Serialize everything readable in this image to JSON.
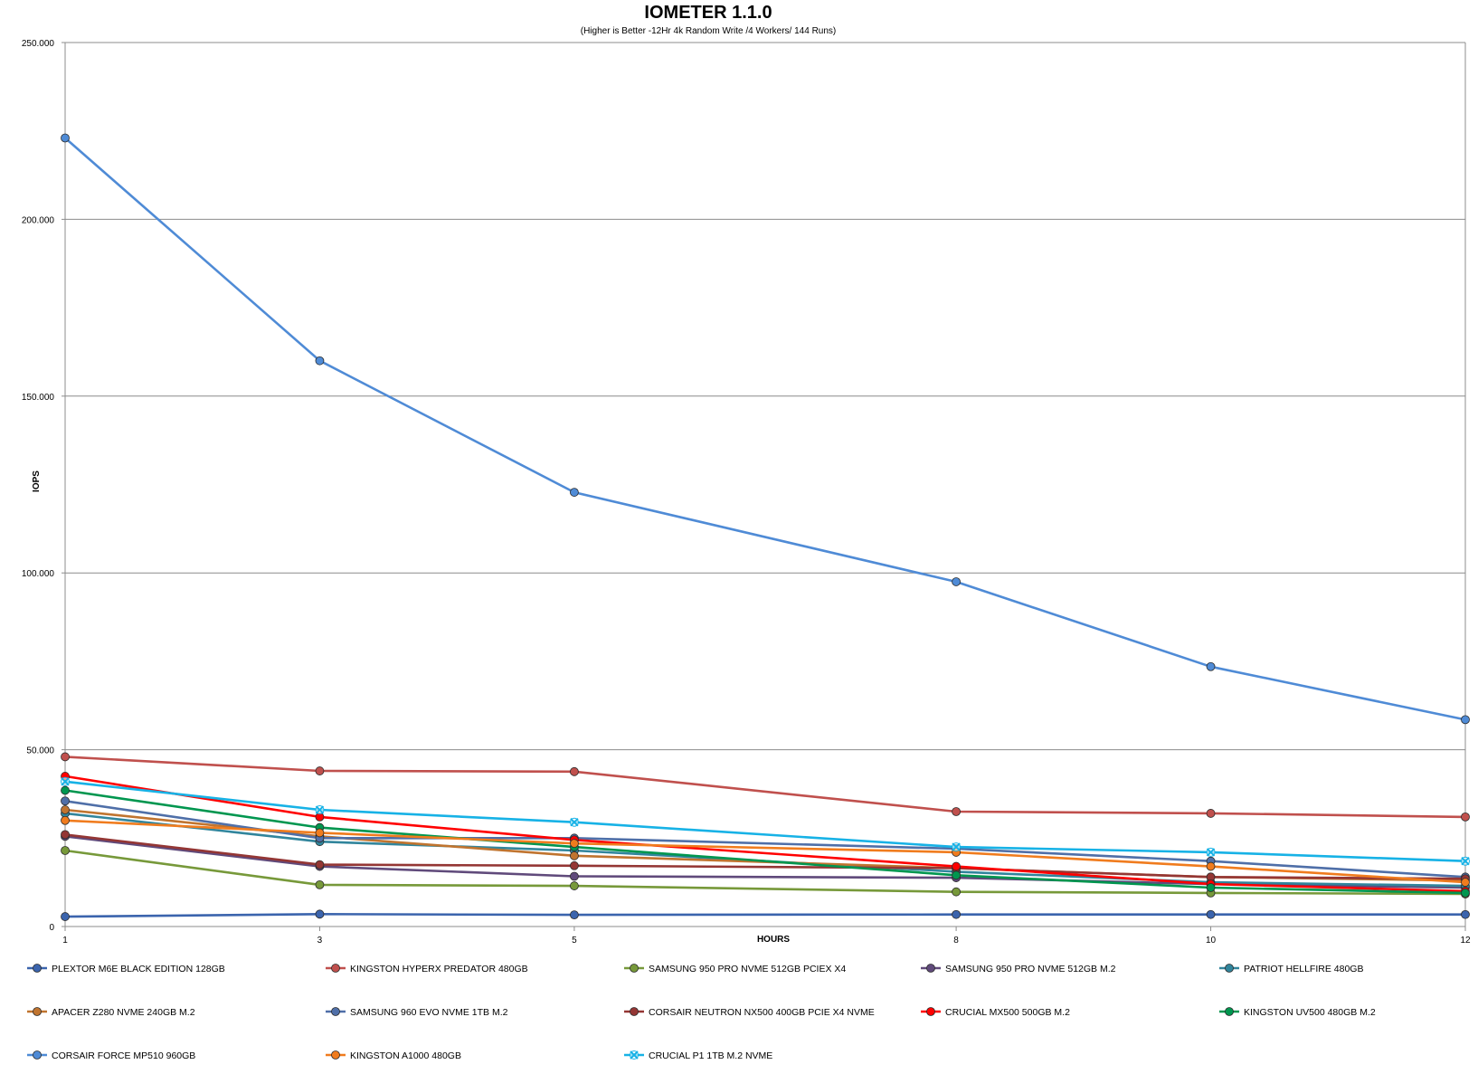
{
  "chart_data": {
    "type": "line",
    "title": "IOMETER 1.1.0",
    "subtitle": "(Higher is Better -12Hr 4k Random Write /4 Workers/ 144 Runs)",
    "xlabel": "HOURS",
    "ylabel": "IOPS",
    "x": [
      1,
      3,
      5,
      8,
      10,
      12
    ],
    "x_tick_labels": [
      "1",
      "3",
      "5",
      "8",
      "10",
      "12"
    ],
    "ylim": [
      0,
      250000
    ],
    "y_ticks": [
      0,
      50000,
      100000,
      150000,
      200000,
      250000
    ],
    "y_tick_labels": [
      "0",
      "50.000",
      "100.000",
      "150.000",
      "200.000",
      "250.000"
    ],
    "grid": "horizontal",
    "legend_position": "bottom",
    "series": [
      {
        "name": "PLEXTOR M6E BLACK EDITION 128GB",
        "color": "#3b64ad",
        "marker": "circle",
        "values": [
          2800,
          3500,
          3300,
          3400,
          3400,
          3400
        ]
      },
      {
        "name": "KINGSTON HYPERX PREDATOR 480GB",
        "color": "#c0504d",
        "marker": "circle",
        "values": [
          48000,
          44000,
          43800,
          32500,
          32000,
          31000
        ]
      },
      {
        "name": "SAMSUNG 950 PRO NVME 512GB PCIEX X4",
        "color": "#77993a",
        "marker": "circle",
        "values": [
          21500,
          11800,
          11500,
          9800,
          9500,
          9200
        ]
      },
      {
        "name": "SAMSUNG 950 PRO NVME 512GB M.2",
        "color": "#604a7b",
        "marker": "circle",
        "values": [
          25500,
          17000,
          14200,
          13800,
          12000,
          11000
        ]
      },
      {
        "name": "PATRIOT HELLFIRE 480GB",
        "color": "#31859c",
        "marker": "circle",
        "values": [
          32000,
          24000,
          21500,
          15500,
          12500,
          11500
        ]
      },
      {
        "name": "APACER Z280 NVME 240GB M.2",
        "color": "#c0742f",
        "marker": "circle",
        "values": [
          33000,
          25500,
          20000,
          16500,
          14000,
          13000
        ]
      },
      {
        "name": "SAMSUNG 960 EVO NVME 1TB M.2",
        "color": "#4f6fa8",
        "marker": "circle",
        "values": [
          35500,
          25000,
          25000,
          22000,
          18500,
          14000
        ]
      },
      {
        "name": "CORSAIR NEUTRON NX500 400GB PCIE X4 NVME",
        "color": "#943634",
        "marker": "circle",
        "values": [
          26000,
          17500,
          17200,
          16500,
          14000,
          13500
        ]
      },
      {
        "name": "CRUCIAL MX500 500GB M.2",
        "color": "#ff0000",
        "marker": "circle",
        "values": [
          42500,
          31000,
          24500,
          17000,
          12000,
          10000
        ]
      },
      {
        "name": "KINGSTON UV500 480GB M.2",
        "color": "#00964f",
        "marker": "circle",
        "values": [
          38500,
          28000,
          22500,
          14500,
          11000,
          9500
        ]
      },
      {
        "name": "CORSAIR FORCE MP510 960GB",
        "color": "#4f8bd6",
        "marker": "circle",
        "values": [
          223000,
          160000,
          122800,
          97500,
          73500,
          58500
        ]
      },
      {
        "name": "KINGSTON A1000 480GB",
        "color": "#f07c1e",
        "marker": "circle",
        "values": [
          30000,
          26500,
          23500,
          21000,
          17000,
          12500
        ]
      },
      {
        "name": "CRUCIAL P1 1TB M.2 NVME",
        "color": "#17b2e6",
        "marker": "x",
        "values": [
          41000,
          33000,
          29500,
          22500,
          21000,
          18500
        ]
      }
    ]
  }
}
